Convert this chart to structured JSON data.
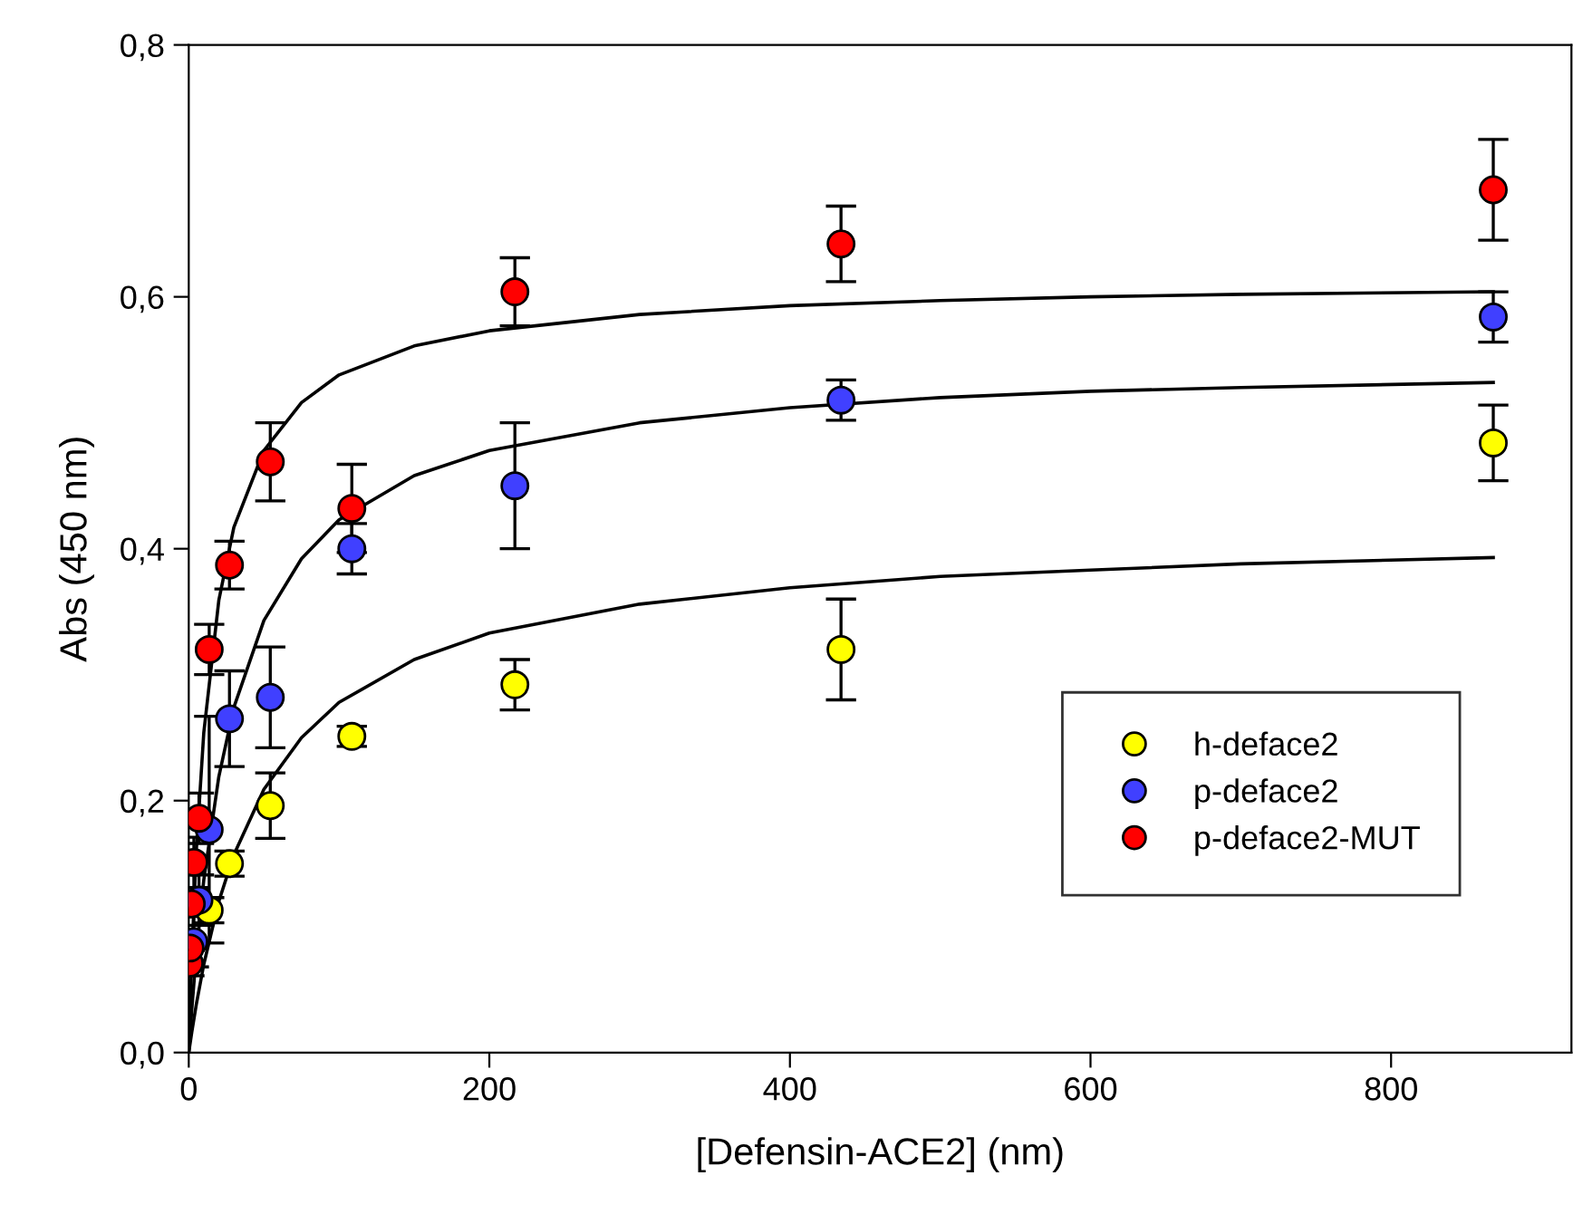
{
  "chart_data": {
    "type": "scatter",
    "xlabel": "[Defensin-ACE2] (nm)",
    "ylabel": "Abs (450 nm)",
    "xlim": [
      0,
      920
    ],
    "ylim": [
      0,
      0.8
    ],
    "xticks": [
      0,
      200,
      400,
      600,
      800
    ],
    "yticks": [
      {
        "value": 0,
        "label": "0,0"
      },
      {
        "value": 0.2,
        "label": "0,2"
      },
      {
        "value": 0.4,
        "label": "0,4"
      },
      {
        "value": 0.6,
        "label": "0,6"
      },
      {
        "value": 0.8,
        "label": "0,8"
      }
    ],
    "grid": false,
    "legend": "bottom right",
    "marker": "circle",
    "series": [
      {
        "name": "h-deface2",
        "color": "#ffff00",
        "x": [
          13.6,
          27.1,
          54.25,
          108.5,
          217,
          434,
          868
        ],
        "values": [
          0.113,
          0.15,
          0.196,
          0.251,
          0.292,
          0.32,
          0.484
        ],
        "errors": [
          0.01,
          0.01,
          0.026,
          0.008,
          0.02,
          0.04,
          0.03
        ]
      },
      {
        "name": "p-deface2",
        "color": "#4040ff",
        "x": [
          3.4,
          6.8,
          13.6,
          27.1,
          54.25,
          108.5,
          217,
          434,
          868
        ],
        "values": [
          0.088,
          0.121,
          0.177,
          0.265,
          0.282,
          0.4,
          0.45,
          0.518,
          0.584
        ],
        "errors": [
          0.02,
          0.02,
          0.09,
          0.038,
          0.04,
          0.02,
          0.05,
          0.016,
          0.02
        ]
      },
      {
        "name": "p-deface2-MUT",
        "color": "#ff0000",
        "x": [
          0.42,
          0.85,
          1.7,
          3.4,
          6.8,
          13.6,
          27.1,
          54.25,
          108.5,
          217,
          434,
          868
        ],
        "values": [
          0.071,
          0.083,
          0.118,
          0.151,
          0.186,
          0.32,
          0.387,
          0.469,
          0.432,
          0.604,
          0.642,
          0.685
        ],
        "errors": [
          0.01,
          0.01,
          null,
          0.02,
          0.02,
          0.02,
          0.019,
          0.031,
          0.035,
          0.027,
          0.03,
          0.04
        ]
      },
      {
        "type": "line",
        "color": "#000000",
        "marker": "none",
        "x": [
          0,
          2,
          5,
          10,
          20,
          30,
          50,
          75,
          100,
          150,
          200,
          300,
          400,
          500,
          600,
          700,
          868
        ],
        "values": [
          0,
          0.016,
          0.038,
          0.07,
          0.12,
          0.157,
          0.209,
          0.25,
          0.278,
          0.312,
          0.333,
          0.356,
          0.369,
          0.378,
          0.383,
          0.388,
          0.393
        ]
      },
      {
        "type": "line",
        "color": "#000000",
        "marker": "none",
        "x": [
          0,
          2,
          5,
          10,
          20,
          30,
          50,
          75,
          100,
          150,
          200,
          300,
          400,
          500,
          600,
          700,
          868
        ],
        "values": [
          0,
          0.034,
          0.078,
          0.137,
          0.219,
          0.274,
          0.343,
          0.392,
          0.423,
          0.458,
          0.478,
          0.5,
          0.512,
          0.52,
          0.525,
          0.528,
          0.532
        ]
      },
      {
        "type": "line",
        "color": "#000000",
        "marker": "none",
        "x": [
          0,
          2,
          5,
          10,
          20,
          30,
          50,
          75,
          100,
          150,
          200,
          300,
          400,
          500,
          600,
          700,
          868
        ],
        "values": [
          0,
          0.076,
          0.16,
          0.254,
          0.359,
          0.417,
          0.478,
          0.516,
          0.538,
          0.561,
          0.573,
          0.586,
          0.593,
          0.597,
          0.6,
          0.602,
          0.604
        ]
      }
    ]
  }
}
